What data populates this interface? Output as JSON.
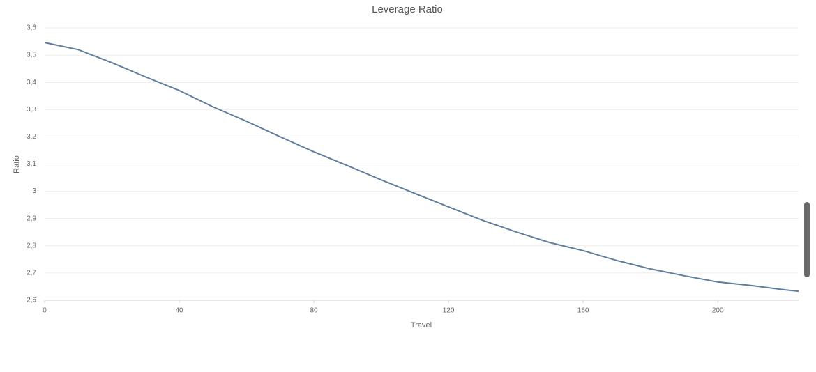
{
  "chart_data": {
    "type": "line",
    "title": "Leverage Ratio",
    "x_label": "Travel",
    "y_label": "Ratio",
    "x": [
      0,
      10,
      20,
      30,
      40,
      50,
      60,
      70,
      80,
      90,
      100,
      110,
      120,
      130,
      140,
      150,
      160,
      170,
      180,
      190,
      200,
      210,
      220,
      224
    ],
    "series": [
      {
        "name": "Leverage Ratio",
        "color": "#5f7d9c",
        "values": [
          3.546,
          3.52,
          3.472,
          3.42,
          3.37,
          3.31,
          3.257,
          3.2,
          3.145,
          3.094,
          3.042,
          2.992,
          2.943,
          2.894,
          2.851,
          2.812,
          2.782,
          2.746,
          2.715,
          2.69,
          2.667,
          2.654,
          2.638,
          2.633
        ]
      }
    ],
    "xlim": [
      0,
      224
    ],
    "xticks": [
      0,
      40,
      80,
      120,
      160,
      200
    ],
    "ylim": [
      2.6,
      3.6
    ],
    "yticks": [
      {
        "value": 2.6,
        "label": "2,6"
      },
      {
        "value": 2.7,
        "label": "2,7"
      },
      {
        "value": 2.8,
        "label": "2,8"
      },
      {
        "value": 2.9,
        "label": "2,9"
      },
      3,
      {
        "value": 3.1,
        "label": "3,1"
      },
      {
        "value": 3.2,
        "label": "3,2"
      },
      {
        "value": 3.3,
        "label": "3,3"
      },
      {
        "value": 3.4,
        "label": "3,4"
      },
      {
        "value": 3.5,
        "label": "3,5"
      },
      {
        "value": 3.6,
        "label": "3,6"
      }
    ],
    "grid": true
  }
}
